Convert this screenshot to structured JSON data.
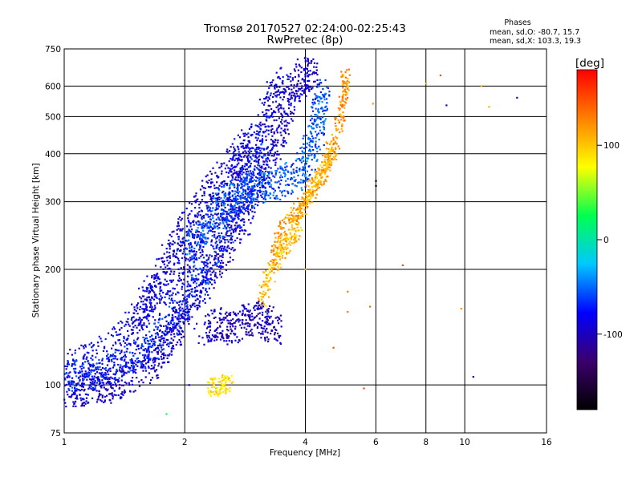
{
  "chart_data": {
    "type": "scatter",
    "title": "Tromsø 20170527 02:24:00-02:25:43",
    "subtitle": "RwPretec (8p)",
    "xlabel": "Frequency [MHz]",
    "ylabel": "Stationary phase Virtual Height [km]",
    "x_scale": "log",
    "y_scale": "log",
    "xlim": [
      1,
      16
    ],
    "ylim": [
      75,
      750
    ],
    "grid": true,
    "x_ticks": [
      "1",
      "2",
      "4",
      "6",
      "8",
      "10",
      "16"
    ],
    "y_ticks": [
      "75",
      "100",
      "200",
      "300",
      "400",
      "500",
      "600",
      "750"
    ],
    "x_tick_values": [
      1,
      2,
      4,
      6,
      8,
      10,
      16
    ],
    "y_tick_values": [
      75,
      100,
      200,
      300,
      400,
      500,
      600,
      750
    ],
    "legend": {
      "title": "Phases",
      "lines": [
        "mean, sd,O: -80.7, 15.7",
        "mean, sd,X: 103.3, 19.3"
      ],
      "placement": "top-right"
    },
    "colorbar": {
      "label": "[deg]",
      "ticks": [
        "100",
        "0",
        "-100"
      ],
      "tick_values": [
        100,
        0,
        -100
      ],
      "range": [
        -180,
        180
      ],
      "colors": [
        "#000000",
        "#3c006e",
        "#0000ff",
        "#00c8ff",
        "#00ff50",
        "#ffff00",
        "#ff8000",
        "#ff0000"
      ]
    },
    "o_mode_traces": [
      {
        "name": "",
        "phase": -95,
        "points": [
          [
            1.0,
            97
          ],
          [
            1.1,
            97
          ],
          [
            1.2,
            98
          ],
          [
            1.3,
            99
          ],
          [
            1.4,
            103
          ],
          [
            1.55,
            108
          ],
          [
            1.7,
            118
          ],
          [
            1.8,
            128
          ],
          [
            1.9,
            140
          ],
          [
            2.0,
            155
          ],
          [
            2.2,
            180
          ],
          [
            2.4,
            205
          ],
          [
            2.6,
            240
          ],
          [
            2.8,
            275
          ],
          [
            3.0,
            320
          ],
          [
            3.2,
            380
          ],
          [
            3.4,
            440
          ],
          [
            3.6,
            520
          ],
          [
            3.8,
            600
          ],
          [
            4.0,
            640
          ],
          [
            4.2,
            650
          ]
        ]
      },
      {
        "name": "",
        "phase": -70,
        "points": [
          [
            1.0,
            105
          ],
          [
            1.1,
            106
          ],
          [
            1.2,
            108
          ],
          [
            1.35,
            112
          ],
          [
            1.5,
            118
          ],
          [
            1.65,
            128
          ],
          [
            1.8,
            142
          ],
          [
            2.0,
            165
          ],
          [
            2.2,
            190
          ],
          [
            2.4,
            225
          ],
          [
            2.6,
            265
          ],
          [
            2.8,
            310
          ],
          [
            3.0,
            360
          ],
          [
            3.2,
            420
          ]
        ]
      },
      {
        "name": "",
        "phase": -85,
        "points": [
          [
            1.0,
            112
          ],
          [
            1.2,
            118
          ],
          [
            1.4,
            132
          ],
          [
            1.55,
            150
          ],
          [
            1.7,
            168
          ],
          [
            1.9,
            190
          ],
          [
            2.1,
            215
          ],
          [
            2.3,
            250
          ],
          [
            2.5,
            295
          ],
          [
            2.7,
            345
          ],
          [
            2.9,
            400
          ],
          [
            3.1,
            470
          ],
          [
            3.3,
            560
          ],
          [
            3.5,
            620
          ]
        ]
      },
      {
        "name": "",
        "phase": -90,
        "points": [
          [
            1.5,
            150
          ],
          [
            1.65,
            175
          ],
          [
            1.8,
            210
          ],
          [
            1.95,
            240
          ],
          [
            2.1,
            270
          ],
          [
            2.3,
            310
          ],
          [
            2.5,
            350
          ],
          [
            2.7,
            390
          ],
          [
            2.9,
            430
          ]
        ]
      },
      {
        "name": "",
        "phase": -55,
        "points": [
          [
            2.0,
            220
          ],
          [
            2.2,
            250
          ],
          [
            2.4,
            280
          ],
          [
            2.6,
            300
          ],
          [
            2.8,
            315
          ],
          [
            3.0,
            325
          ],
          [
            3.3,
            330
          ],
          [
            3.6,
            340
          ],
          [
            3.9,
            360
          ],
          [
            4.1,
            400
          ],
          [
            4.25,
            450
          ],
          [
            4.35,
            520
          ],
          [
            4.4,
            580
          ]
        ]
      },
      {
        "name": "",
        "phase": -100,
        "points": [
          [
            2.2,
            140
          ],
          [
            2.4,
            145
          ],
          [
            2.6,
            140
          ],
          [
            2.8,
            145
          ],
          [
            3.0,
            150
          ],
          [
            3.2,
            145
          ],
          [
            3.4,
            140
          ]
        ]
      }
    ],
    "x_mode_traces": [
      {
        "name": "",
        "phase": 120,
        "points": [
          [
            3.3,
            210
          ],
          [
            3.4,
            230
          ],
          [
            3.5,
            255
          ],
          [
            3.7,
            270
          ],
          [
            3.9,
            290
          ],
          [
            4.1,
            320
          ],
          [
            4.3,
            340
          ],
          [
            4.5,
            360
          ],
          [
            4.7,
            400
          ],
          [
            4.85,
            470
          ],
          [
            4.95,
            540
          ],
          [
            5.0,
            600
          ],
          [
            5.05,
            640
          ]
        ]
      },
      {
        "name": "",
        "phase": 105,
        "points": [
          [
            3.1,
            165
          ],
          [
            3.2,
            185
          ],
          [
            3.35,
            205
          ],
          [
            3.5,
            225
          ],
          [
            3.6,
            235
          ],
          [
            3.75,
            250
          ],
          [
            3.9,
            280
          ],
          [
            4.1,
            310
          ],
          [
            4.3,
            340
          ],
          [
            4.5,
            380
          ],
          [
            4.6,
            420
          ]
        ]
      },
      {
        "name": "",
        "phase": 90,
        "points": [
          [
            2.3,
            98
          ],
          [
            2.4,
            99
          ],
          [
            2.5,
            100
          ],
          [
            2.6,
            101
          ]
        ]
      }
    ],
    "scattered_points": [
      {
        "x": 1.8,
        "y": 84,
        "phase": 20
      },
      {
        "x": 2.05,
        "y": 100,
        "phase": -90
      },
      {
        "x": 4.0,
        "y": 200,
        "phase": 110
      },
      {
        "x": 4.7,
        "y": 125,
        "phase": 150
      },
      {
        "x": 4.75,
        "y": 480,
        "phase": 130
      },
      {
        "x": 5.1,
        "y": 155,
        "phase": 130
      },
      {
        "x": 5.1,
        "y": 175,
        "phase": 130
      },
      {
        "x": 5.6,
        "y": 98,
        "phase": 150
      },
      {
        "x": 5.8,
        "y": 160,
        "phase": 140
      },
      {
        "x": 5.9,
        "y": 540,
        "phase": 120
      },
      {
        "x": 6.0,
        "y": 340,
        "phase": -175
      },
      {
        "x": 6.0,
        "y": 330,
        "phase": -175
      },
      {
        "x": 7.0,
        "y": 205,
        "phase": 150
      },
      {
        "x": 8.0,
        "y": 610,
        "phase": 110
      },
      {
        "x": 8.7,
        "y": 640,
        "phase": 150
      },
      {
        "x": 9.0,
        "y": 535,
        "phase": -100
      },
      {
        "x": 9.8,
        "y": 158,
        "phase": 120
      },
      {
        "x": 10.5,
        "y": 105,
        "phase": -100
      },
      {
        "x": 11.0,
        "y": 600,
        "phase": 110
      },
      {
        "x": 11.5,
        "y": 530,
        "phase": 110
      },
      {
        "x": 13.5,
        "y": 560,
        "phase": -90
      }
    ]
  }
}
